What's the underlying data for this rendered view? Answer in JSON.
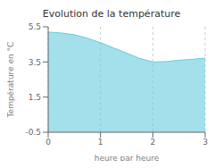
{
  "chart_data": {
    "type": "area",
    "title": "Evolution de la température",
    "xlabel": "heure par heure",
    "ylabel": "Température en °C",
    "x": [
      0,
      0.25,
      0.5,
      0.75,
      1.0,
      1.25,
      1.5,
      1.75,
      2.0,
      2.25,
      2.5,
      2.75,
      3.0
    ],
    "values": [
      5.2,
      5.15,
      5.05,
      4.85,
      4.6,
      4.3,
      4.0,
      3.7,
      3.5,
      3.52,
      3.6,
      3.65,
      3.72
    ],
    "color": "#66ccdd",
    "xlim": [
      0,
      3
    ],
    "ylim": [
      -0.5,
      5.5
    ],
    "xticks": [
      0,
      1,
      2,
      3
    ],
    "yticks": [
      -0.5,
      1.5,
      3.5,
      5.5
    ],
    "grid": "x"
  }
}
